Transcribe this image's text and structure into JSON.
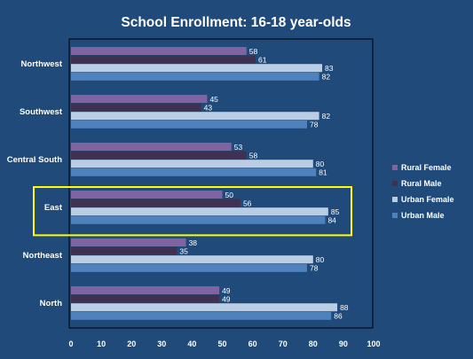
{
  "chart_data": {
    "type": "bar",
    "orientation": "horizontal",
    "title": "School Enrollment: 16-18 year-olds",
    "xlabel": "",
    "ylabel": "",
    "xlim": [
      0,
      100
    ],
    "x_ticks": [
      "0",
      "10",
      "20",
      "30",
      "40",
      "50",
      "60",
      "70",
      "80",
      "90",
      "100"
    ],
    "categories": [
      "Northwest",
      "Southwest",
      "Central South",
      "East",
      "Northeast",
      "North"
    ],
    "series": [
      {
        "name": "Rural Female",
        "color": "#8064a2",
        "values": [
          58,
          45,
          53,
          50,
          38,
          49
        ]
      },
      {
        "name": "Rural Male",
        "color": "#403152",
        "values": [
          61,
          43,
          58,
          56,
          35,
          49
        ]
      },
      {
        "name": "Urban Female",
        "color": "#b9cde5",
        "values": [
          83,
          82,
          80,
          85,
          80,
          88
        ]
      },
      {
        "name": "Urban Male",
        "color": "#4f81bd",
        "values": [
          82,
          78,
          81,
          84,
          78,
          86
        ]
      }
    ],
    "highlighted_category": "East",
    "highlight_color": "#ffff00",
    "legend_position": "right",
    "grid": false
  }
}
